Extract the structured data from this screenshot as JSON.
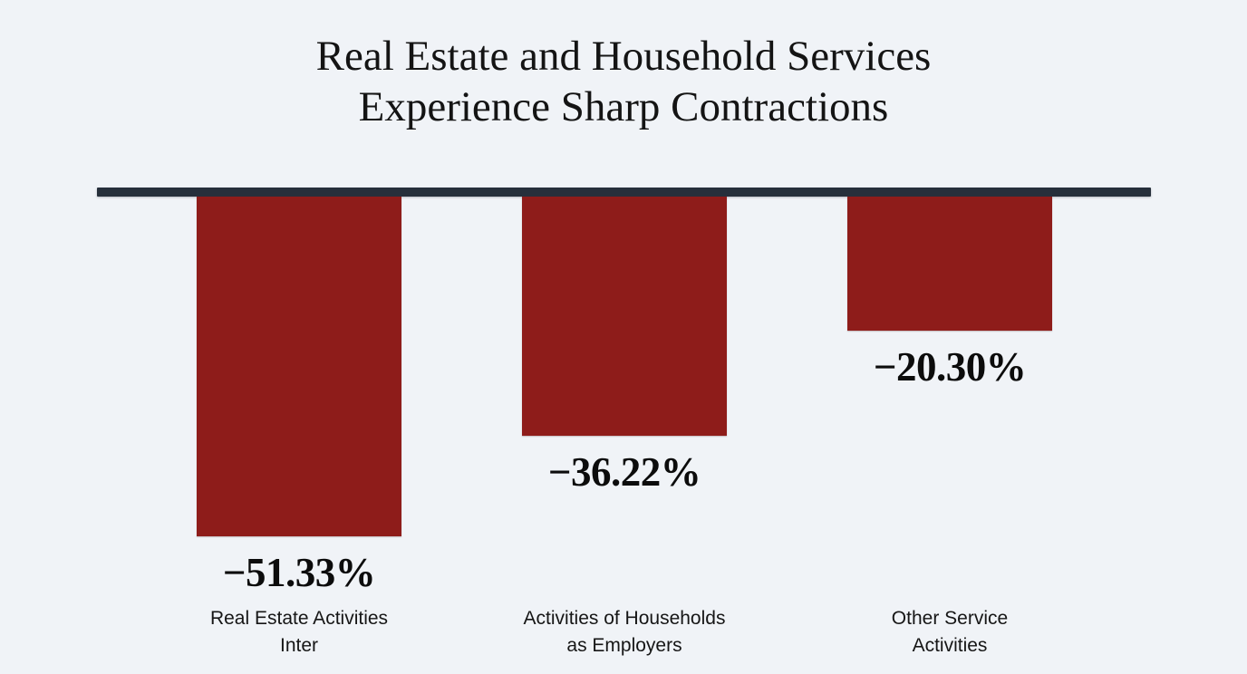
{
  "title": {
    "line1": "Real Estate and Household Services",
    "line2": "Experience Sharp Contractions"
  },
  "chart_data": {
    "type": "bar",
    "title": "Real Estate and Household Services Experience Sharp Contractions",
    "orientation": "vertical",
    "baseline": 0,
    "categories": [
      "Real Estate Activities\nInter",
      "Activities of Households\nas Employers",
      "Other Service\nActivities"
    ],
    "values": [
      -51.33,
      -36.22,
      -20.3
    ],
    "value_labels": [
      "−51.33%",
      "−36.22%",
      "−20.30%"
    ],
    "xlabel": "",
    "ylabel": "",
    "ylim": [
      -55,
      0
    ],
    "grid": false,
    "legend": false,
    "bar_color": "#8e1c1a",
    "baseline_color": "#262f3b",
    "background_color": "#f0f3f7",
    "text_color": "#141414"
  }
}
